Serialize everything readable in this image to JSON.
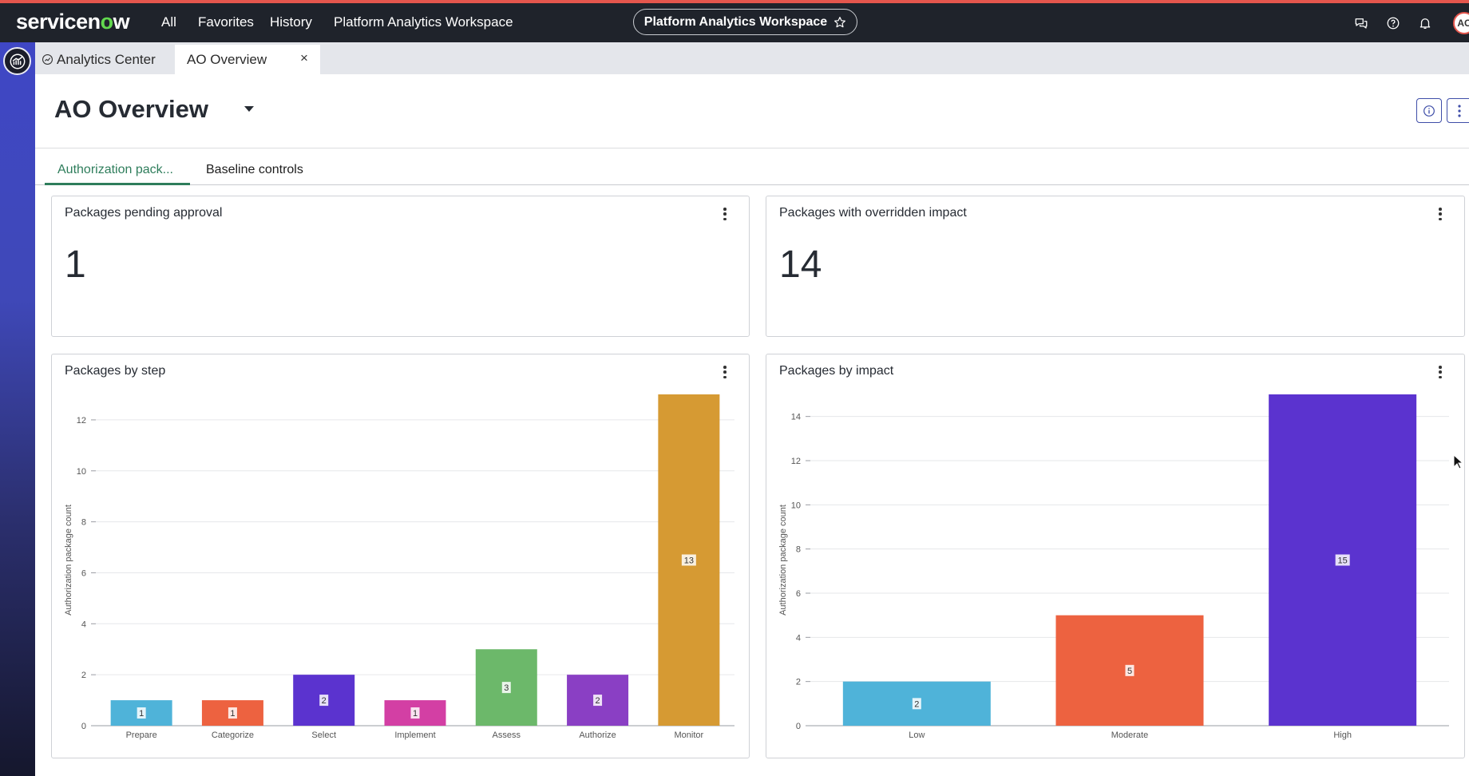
{
  "topbar": {
    "brand_prefix": "servicen",
    "brand_o": "o",
    "brand_suffix": "w",
    "nav": [
      "All",
      "Favorites",
      "History",
      "Platform Analytics Workspace"
    ],
    "workspace_pill": "Platform Analytics Workspace",
    "avatar_initials": "AC"
  },
  "tabs": [
    {
      "label": "Analytics Center",
      "active": false
    },
    {
      "label": "AO Overview",
      "active": true,
      "close": "×"
    }
  ],
  "page": {
    "title": "AO Overview"
  },
  "content_tabs": [
    {
      "label": "Authorization pack...",
      "active": true
    },
    {
      "label": "Baseline controls",
      "active": false
    }
  ],
  "kpis": [
    {
      "title": "Packages pending approval",
      "value": "1"
    },
    {
      "title": "Packages with overridden impact",
      "value": "14"
    }
  ],
  "chart_data": [
    {
      "type": "bar",
      "title": "Packages by step",
      "ylabel": "Authorization package count",
      "ylim": [
        0,
        13
      ],
      "yticks": [
        0,
        2,
        4,
        6,
        8,
        10,
        12
      ],
      "categories": [
        "Prepare",
        "Categorize",
        "Select",
        "Implement",
        "Assess",
        "Authorize",
        "Monitor"
      ],
      "values": [
        1,
        1,
        2,
        1,
        3,
        2,
        13
      ],
      "colors": [
        "#4fb3d9",
        "#ed6240",
        "#5b33cf",
        "#d33fa4",
        "#6cb86a",
        "#8a3fc4",
        "#d69a33"
      ],
      "grid": true
    },
    {
      "type": "bar",
      "title": "Packages by impact",
      "ylabel": "Authorization package count",
      "ylim": [
        0,
        15
      ],
      "yticks": [
        0,
        2,
        4,
        6,
        8,
        10,
        12,
        14
      ],
      "categories": [
        "Low",
        "Moderate",
        "High"
      ],
      "values": [
        2,
        5,
        15
      ],
      "colors": [
        "#4fb3d9",
        "#ed6240",
        "#5b33cf"
      ],
      "grid": true
    }
  ]
}
